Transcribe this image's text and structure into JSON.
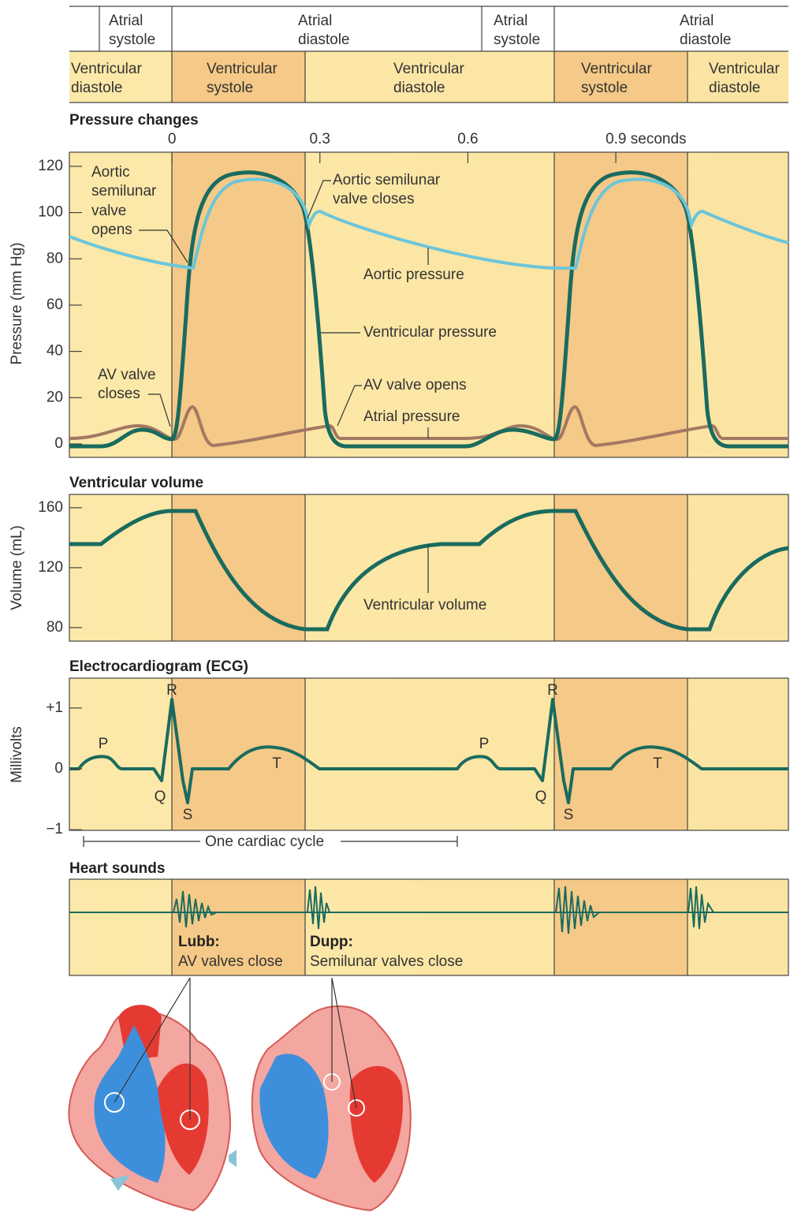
{
  "header": {
    "atrial_row": [
      [
        "Atrial",
        "systole"
      ],
      [
        "Atrial",
        "diastole"
      ],
      [
        "Atrial",
        "systole"
      ],
      [
        "Atrial",
        "diastole"
      ]
    ],
    "ventricular_row": [
      [
        "Ventricular",
        "diastole"
      ],
      [
        "Ventricular",
        "systole"
      ],
      [
        "Ventricular",
        "diastole"
      ],
      [
        "Ventricular",
        "systole"
      ],
      [
        "Ventricular",
        "diastole"
      ]
    ]
  },
  "time_axis": {
    "xlim": [
      -0.208,
      1.25
    ],
    "xticks": [
      0,
      0.3,
      0.6,
      {
        "value": 0.9,
        "label": "0.9 seconds"
      }
    ]
  },
  "pressure": {
    "title": "Pressure changes",
    "y_label": "Pressure (mm Hg)",
    "ylim": [
      -5.8,
      126.1
    ],
    "yticks": [
      0,
      20,
      40,
      60,
      80,
      100,
      120
    ],
    "annotations": {
      "aortic_valve_opens": [
        "Aortic",
        "semilunar",
        "valve",
        "opens"
      ],
      "aortic_valve_closes": [
        "Aortic semilunar",
        "valve closes"
      ],
      "aortic_pressure": "Aortic pressure",
      "ventricular_pressure": "Ventricular pressure",
      "av_valve_closes": [
        "AV valve",
        "closes"
      ],
      "av_valve_opens": "AV valve opens",
      "atrial_pressure": "Atrial pressure"
    }
  },
  "volume": {
    "title": "Ventricular volume",
    "y_label": "Volume (mL)",
    "ylim": [
      71,
      168.9
    ],
    "yticks": [
      80,
      120,
      160
    ],
    "curve_label": "Ventricular volume"
  },
  "ecg": {
    "title": "Electrocardiogram (ECG)",
    "y_label": "Millivolts",
    "ylim": [
      -1.01,
      1.49
    ],
    "yticks": [
      {
        "value": -1,
        "label": "−1"
      },
      0,
      {
        "value": 1,
        "label": "+1"
      }
    ],
    "waves": [
      "P",
      "Q",
      "R",
      "S",
      "T",
      "P",
      "Q",
      "R",
      "S",
      "T"
    ],
    "cycle_label": "One cardiac cycle"
  },
  "sounds": {
    "title": "Heart sounds",
    "lubb": {
      "name": "Lubb:",
      "desc": "AV valves close"
    },
    "dupp": {
      "name": "Dupp:",
      "desc": "Semilunar valves close"
    }
  }
}
